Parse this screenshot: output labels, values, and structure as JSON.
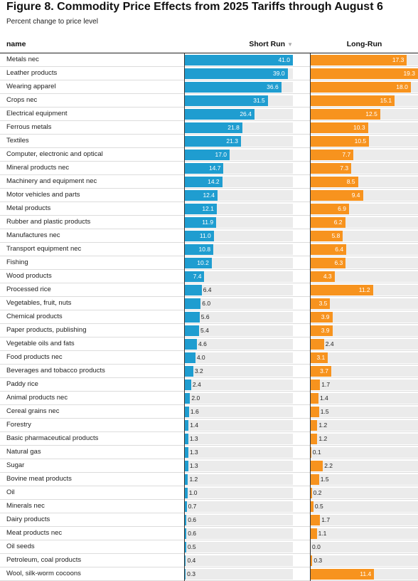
{
  "title": "Figure 8. Commodity Price Effects from 2025 Tariffs through August 6",
  "subtitle": "Percent change to price level",
  "columns": {
    "name": "name",
    "short_run": "Short Run",
    "long_run": "Long-Run",
    "sort_icon": "sort-down-icon",
    "sort_glyph": "▼"
  },
  "colors": {
    "short_run": "#1f9dd0",
    "long_run": "#f7931e",
    "track": "#ebebeb"
  },
  "chart_data": {
    "type": "bar",
    "orientation": "horizontal",
    "title": "Figure 8. Commodity Price Effects from 2025 Tariffs through August 6",
    "subtitle": "Percent change to price level",
    "sorted_by": "Short Run",
    "sort_order": "descending",
    "categories": [
      "Metals nec",
      "Leather products",
      "Wearing apparel",
      "Crops nec",
      "Electrical equipment",
      "Ferrous metals",
      "Textiles",
      "Computer, electronic and optical",
      "Mineral products nec",
      "Machinery and equipment nec",
      "Motor vehicles and parts",
      "Metal products",
      "Rubber and plastic products",
      "Manufactures nec",
      "Transport equipment nec",
      "Fishing",
      "Wood products",
      "Processed rice",
      "Vegetables, fruit, nuts",
      "Chemical products",
      "Paper products, publishing",
      "Vegetable oils and fats",
      "Food products nec",
      "Beverages and tobacco products",
      "Paddy rice",
      "Animal products nec",
      "Cereal grains nec",
      "Forestry",
      "Basic pharmaceutical products",
      "Natural gas",
      "Sugar",
      "Bovine meat products",
      "Oil",
      "Minerals nec",
      "Dairy products",
      "Meat products nec",
      "Oil seeds",
      "Petroleum, coal products",
      "Wool, silk-worm cocoons"
    ],
    "series": [
      {
        "name": "Short Run",
        "values": [
          41.0,
          39.0,
          36.6,
          31.5,
          26.4,
          21.8,
          21.3,
          17.0,
          14.7,
          14.2,
          12.4,
          12.1,
          11.9,
          11.0,
          10.8,
          10.2,
          7.4,
          6.4,
          6.0,
          5.6,
          5.4,
          4.6,
          4.0,
          3.2,
          2.4,
          2.0,
          1.6,
          1.4,
          1.3,
          1.3,
          1.3,
          1.2,
          1.0,
          0.7,
          0.6,
          0.6,
          0.5,
          0.4,
          0.3
        ],
        "domain_max": 41.0
      },
      {
        "name": "Long-Run",
        "values": [
          17.3,
          19.3,
          18.0,
          15.1,
          12.5,
          10.3,
          10.5,
          7.7,
          7.3,
          8.5,
          9.4,
          6.9,
          6.2,
          5.8,
          6.4,
          6.3,
          4.3,
          11.2,
          3.5,
          3.9,
          3.9,
          2.4,
          3.1,
          3.7,
          1.7,
          1.4,
          1.5,
          1.2,
          1.2,
          0.1,
          2.2,
          1.5,
          0.2,
          0.5,
          1.7,
          1.1,
          0.0,
          0.3,
          11.4
        ],
        "domain_max": 19.3
      }
    ],
    "value_format": "one decimal",
    "grid": false,
    "legend": "column headers"
  }
}
